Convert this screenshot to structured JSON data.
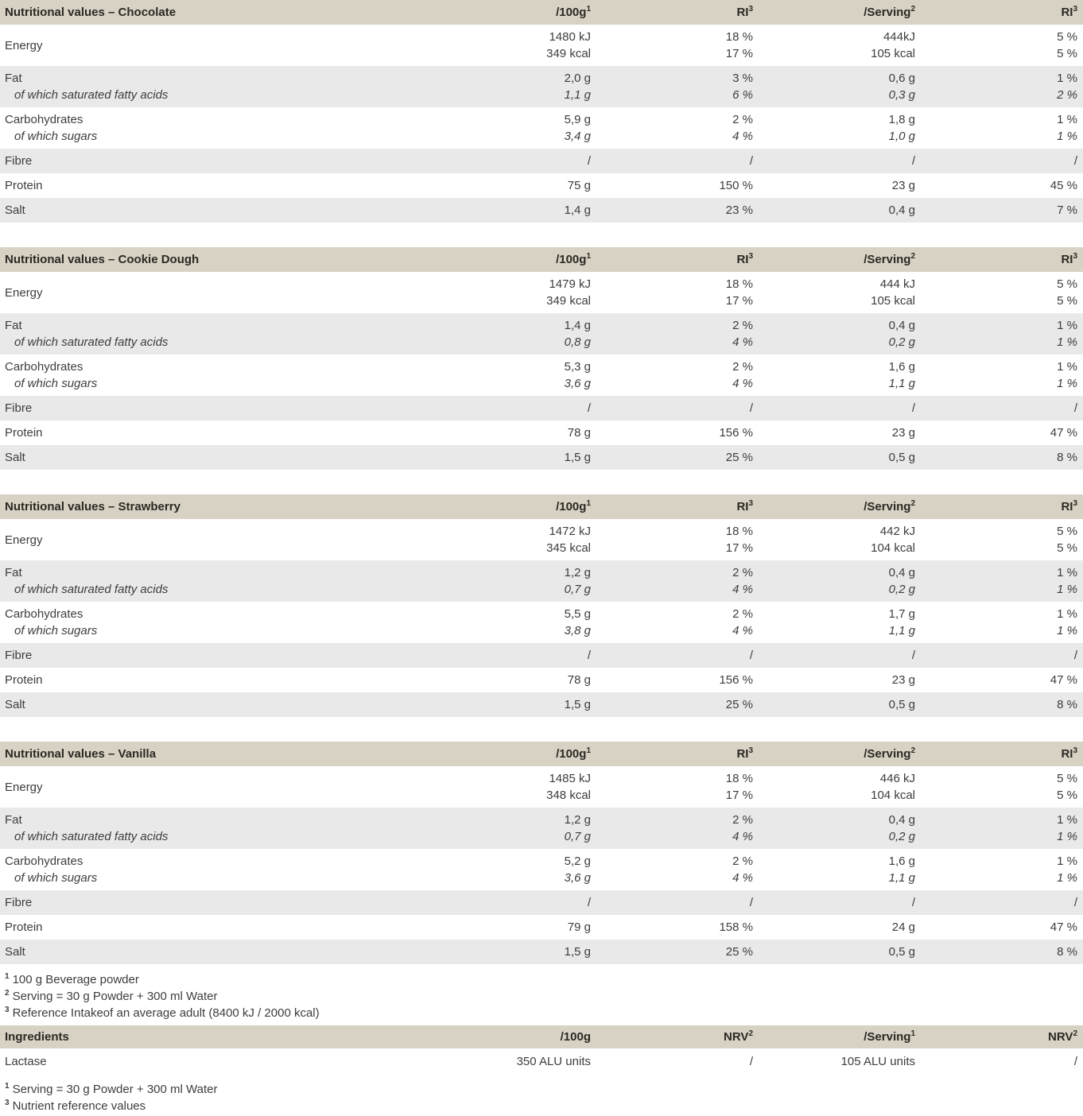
{
  "colors": {
    "header_bg": "#d8d2c5",
    "row_alt_bg": "#e9e9e9",
    "row_bg": "#ffffff",
    "text": "#3e3d3b",
    "header_text": "#2b2922"
  },
  "tables": [
    {
      "title": "Nutritional values – Chocolate",
      "headers": {
        "c1": {
          "base": "/100g",
          "sup": "1"
        },
        "c2": {
          "base": "RI",
          "sup": "3"
        },
        "c3": {
          "base": "/Serving",
          "sup": "2"
        },
        "c4": {
          "base": "RI",
          "sup": "3"
        }
      },
      "energy": {
        "label": "Energy",
        "v1a": "1480 kJ",
        "v1b": "349 kcal",
        "v2a": "18 %",
        "v2b": "17 %",
        "v3a": "444kJ",
        "v3b": "105 kcal",
        "v4a": "5 %",
        "v4b": "5 %"
      },
      "fat": {
        "label": "Fat",
        "v1": "2,0 g",
        "v2": "3 %",
        "v3": "0,6 g",
        "v4": "1 %"
      },
      "satfat": {
        "label": "of which saturated fatty acids",
        "v1": "1,1 g",
        "v2": "6 %",
        "v3": "0,3 g",
        "v4": "2 %"
      },
      "carbs": {
        "label": "Carbohydrates",
        "v1": "5,9 g",
        "v2": "2 %",
        "v3": "1,8 g",
        "v4": "1 %"
      },
      "sugars": {
        "label": "of which sugars",
        "v1": "3,4 g",
        "v2": "4 %",
        "v3": "1,0 g",
        "v4": "1 %"
      },
      "fibre": {
        "label": "Fibre",
        "v1": "/",
        "v2": "/",
        "v3": "/",
        "v4": "/"
      },
      "protein": {
        "label": "Protein",
        "v1": "75 g",
        "v2": "150 %",
        "v3": "23 g",
        "v4": "45 %"
      },
      "salt": {
        "label": "Salt",
        "v1": "1,4 g",
        "v2": "23 %",
        "v3": "0,4 g",
        "v4": "7 %"
      }
    },
    {
      "title": "Nutritional values – Cookie Dough",
      "headers": {
        "c1": {
          "base": "/100g",
          "sup": "1"
        },
        "c2": {
          "base": "RI",
          "sup": "3"
        },
        "c3": {
          "base": "/Serving",
          "sup": "2"
        },
        "c4": {
          "base": "RI",
          "sup": "3"
        }
      },
      "energy": {
        "label": "Energy",
        "v1a": "1479 kJ",
        "v1b": "349 kcal",
        "v2a": "18 %",
        "v2b": "17 %",
        "v3a": "444 kJ",
        "v3b": "105 kcal",
        "v4a": "5 %",
        "v4b": "5 %"
      },
      "fat": {
        "label": "Fat",
        "v1": "1,4 g",
        "v2": "2 %",
        "v3": "0,4 g",
        "v4": "1 %"
      },
      "satfat": {
        "label": "of which saturated fatty acids",
        "v1": "0,8 g",
        "v2": "4 %",
        "v3": "0,2 g",
        "v4": "1 %"
      },
      "carbs": {
        "label": "Carbohydrates",
        "v1": "5,3 g",
        "v2": "2 %",
        "v3": "1,6 g",
        "v4": "1 %"
      },
      "sugars": {
        "label": "of which sugars",
        "v1": "3,6 g",
        "v2": "4 %",
        "v3": "1,1 g",
        "v4": "1 %"
      },
      "fibre": {
        "label": "Fibre",
        "v1": "/",
        "v2": "/",
        "v3": "/",
        "v4": "/"
      },
      "protein": {
        "label": "Protein",
        "v1": "78 g",
        "v2": "156 %",
        "v3": "23 g",
        "v4": "47 %"
      },
      "salt": {
        "label": "Salt",
        "v1": "1,5 g",
        "v2": "25 %",
        "v3": "0,5 g",
        "v4": "8 %"
      }
    },
    {
      "title": "Nutritional values – Strawberry",
      "headers": {
        "c1": {
          "base": "/100g",
          "sup": "1"
        },
        "c2": {
          "base": "RI",
          "sup": "3"
        },
        "c3": {
          "base": "/Serving",
          "sup": "2"
        },
        "c4": {
          "base": "RI",
          "sup": "3"
        }
      },
      "energy": {
        "label": "Energy",
        "v1a": "1472 kJ",
        "v1b": "345 kcal",
        "v2a": "18 %",
        "v2b": "17 %",
        "v3a": "442 kJ",
        "v3b": "104 kcal",
        "v4a": "5 %",
        "v4b": "5 %"
      },
      "fat": {
        "label": "Fat",
        "v1": "1,2 g",
        "v2": "2 %",
        "v3": "0,4 g",
        "v4": "1 %"
      },
      "satfat": {
        "label": "of which saturated fatty acids",
        "v1": "0,7 g",
        "v2": "4 %",
        "v3": "0,2 g",
        "v4": "1 %"
      },
      "carbs": {
        "label": "Carbohydrates",
        "v1": "5,5 g",
        "v2": "2 %",
        "v3": "1,7 g",
        "v4": "1 %"
      },
      "sugars": {
        "label": "of which sugars",
        "v1": "3,8 g",
        "v2": "4 %",
        "v3": "1,1 g",
        "v4": "1 %"
      },
      "fibre": {
        "label": "Fibre",
        "v1": "/",
        "v2": "/",
        "v3": "/",
        "v4": "/"
      },
      "protein": {
        "label": "Protein",
        "v1": "78 g",
        "v2": "156 %",
        "v3": "23 g",
        "v4": "47 %"
      },
      "salt": {
        "label": "Salt",
        "v1": "1,5 g",
        "v2": "25 %",
        "v3": "0,5 g",
        "v4": "8 %"
      }
    },
    {
      "title": "Nutritional values – Vanilla",
      "headers": {
        "c1": {
          "base": "/100g",
          "sup": "1"
        },
        "c2": {
          "base": "RI",
          "sup": "3"
        },
        "c3": {
          "base": "/Serving",
          "sup": "2"
        },
        "c4": {
          "base": "RI",
          "sup": "3"
        }
      },
      "energy": {
        "label": "Energy",
        "v1a": "1485 kJ",
        "v1b": "348 kcal",
        "v2a": "18 %",
        "v2b": "17 %",
        "v3a": "446 kJ",
        "v3b": "104 kcal",
        "v4a": "5 %",
        "v4b": "5 %"
      },
      "fat": {
        "label": "Fat",
        "v1": "1,2 g",
        "v2": "2 %",
        "v3": "0,4 g",
        "v4": "1 %"
      },
      "satfat": {
        "label": "of which saturated fatty acids",
        "v1": "0,7 g",
        "v2": "4 %",
        "v3": "0,2 g",
        "v4": "1 %"
      },
      "carbs": {
        "label": "Carbohydrates",
        "v1": "5,2 g",
        "v2": "2 %",
        "v3": "1,6 g",
        "v4": "1 %"
      },
      "sugars": {
        "label": "of which sugars",
        "v1": "3,6 g",
        "v2": "4 %",
        "v3": "1,1 g",
        "v4": "1 %"
      },
      "fibre": {
        "label": "Fibre",
        "v1": "/",
        "v2": "/",
        "v3": "/",
        "v4": "/"
      },
      "protein": {
        "label": "Protein",
        "v1": "79 g",
        "v2": "158 %",
        "v3": "24 g",
        "v4": "47 %"
      },
      "salt": {
        "label": "Salt",
        "v1": "1,5 g",
        "v2": "25 %",
        "v3": "0,5 g",
        "v4": "8 %"
      }
    }
  ],
  "footnotes_main": [
    {
      "sup": "1",
      "text": "100 g Beverage powder"
    },
    {
      "sup": "2",
      "text": "Serving = 30 g Powder + 300 ml Water"
    },
    {
      "sup": "3",
      "text": "Reference Intakeof an average adult (8400 kJ / 2000 kcal)"
    }
  ],
  "ingredients": {
    "title": "Ingredients",
    "headers": {
      "c1": {
        "base": "/100g",
        "sup": ""
      },
      "c2": {
        "base": "NRV",
        "sup": "2"
      },
      "c3": {
        "base": "/Serving",
        "sup": "1"
      },
      "c4": {
        "base": "NRV",
        "sup": "2"
      }
    },
    "rows": [
      {
        "label": "Lactase",
        "v1": "350 ALU units",
        "v2": "/",
        "v3": "105 ALU units",
        "v4": "/"
      }
    ]
  },
  "footnotes_ingredients": [
    {
      "sup": "1",
      "text": "Serving = 30 g Powder + 300 ml Water"
    },
    {
      "sup": "3",
      "text": "Nutrient reference values"
    }
  ]
}
